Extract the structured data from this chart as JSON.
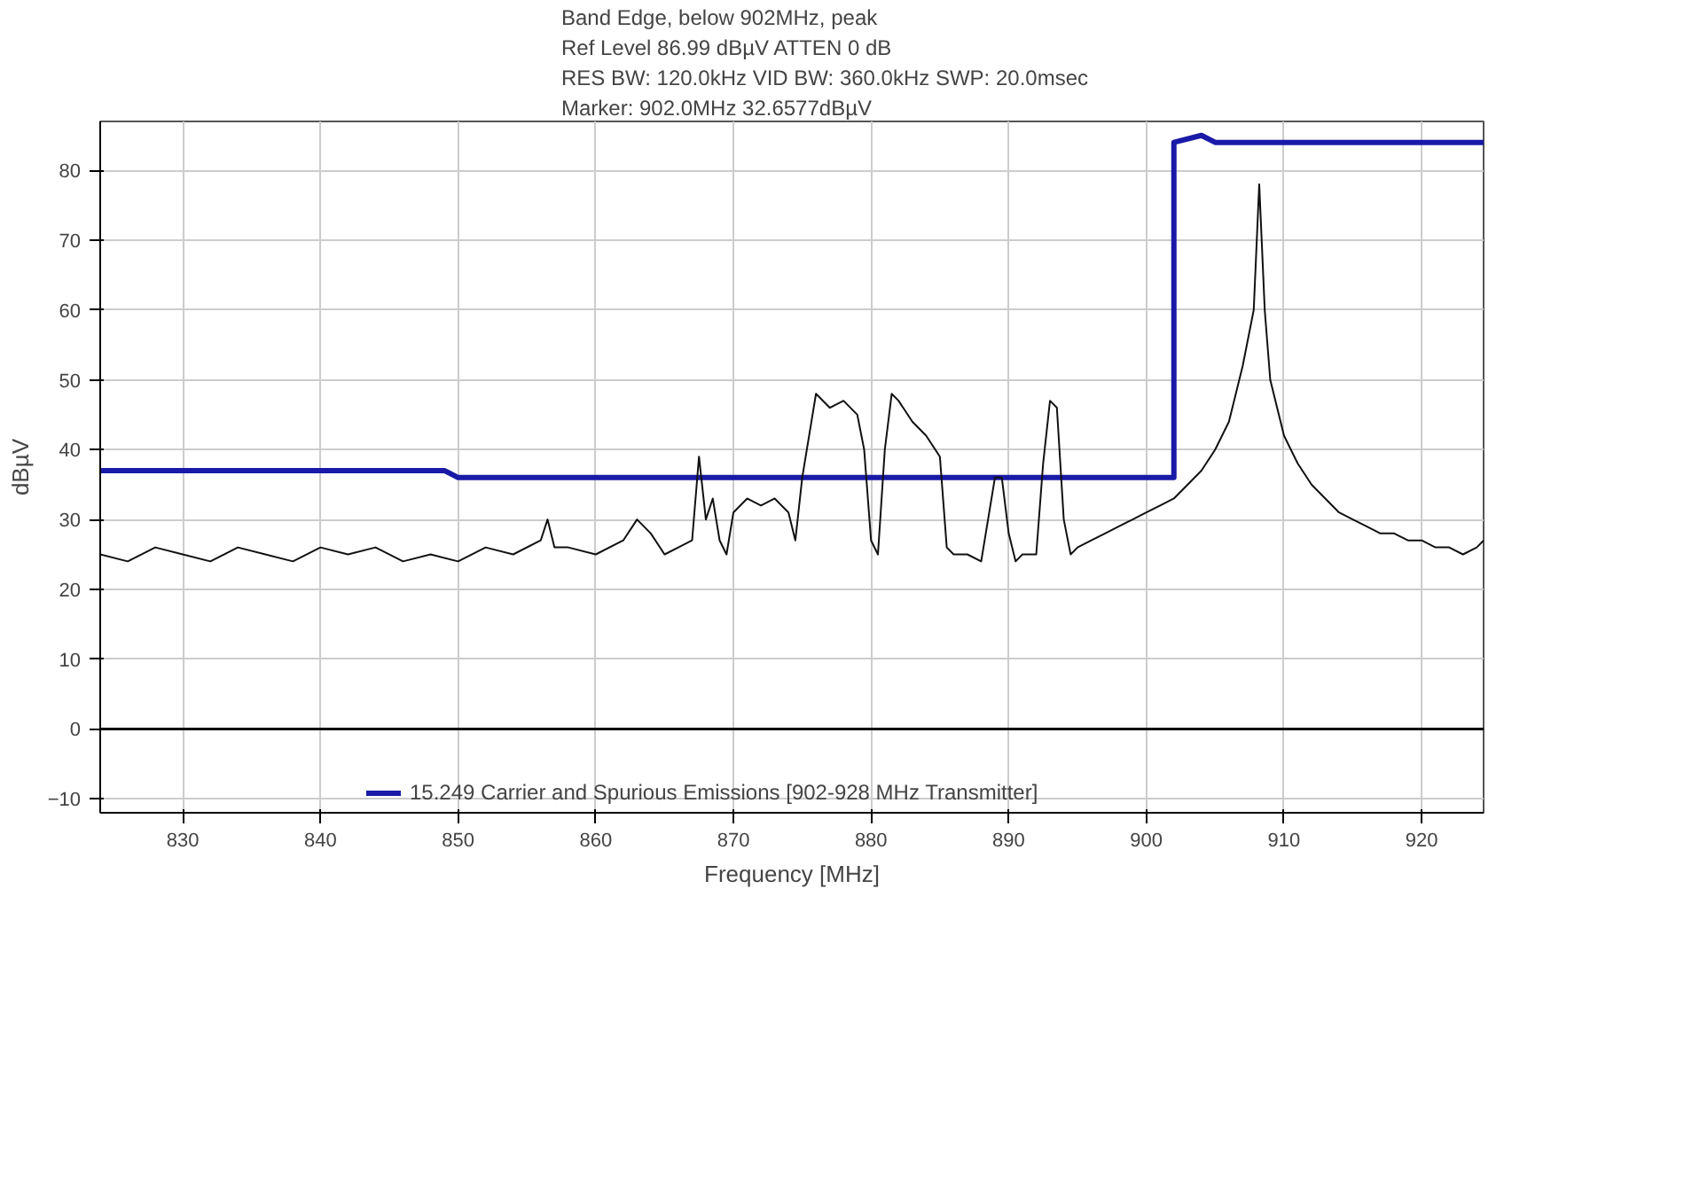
{
  "chart_data": {
    "type": "line",
    "xlabel": "Frequency [MHz]",
    "ylabel": "dBµV",
    "annotations": [
      "Band Edge, below 902MHz, peak",
      "Ref Level 86.99 dBµV    ATTEN 0 dB",
      "RES BW: 120.0kHz  VID BW: 360.0kHz  SWP: 20.0msec",
      "Marker: 902.0MHz  32.6577dBµV"
    ],
    "xlim": [
      824,
      924.5
    ],
    "ylim": [
      -12,
      87
    ],
    "xticks": [
      830,
      840,
      850,
      860,
      870,
      880,
      890,
      900,
      910,
      920
    ],
    "yticks": [
      -10,
      0,
      10,
      20,
      30,
      40,
      50,
      60,
      70,
      80
    ],
    "grid": true,
    "legend": "bottom",
    "marker": "none",
    "line_style": "solid",
    "ref_lines": [
      {
        "axis": "y",
        "value": 0,
        "color": "#000000"
      }
    ],
    "series": [
      {
        "name": "15.249 Carrier and Spurious Emissions [902-928 MHz Transmitter]",
        "color": "#1a1aa8",
        "x": [
          824,
          849,
          850,
          902,
          902,
          904,
          905,
          924.5
        ],
        "values": [
          37,
          37,
          36,
          36,
          84,
          85,
          84,
          84
        ]
      },
      {
        "color": "#111111",
        "x": [
          824,
          826,
          828,
          830,
          832,
          834,
          836,
          838,
          840,
          842,
          844,
          846,
          848,
          850,
          852,
          854,
          856,
          856.5,
          857,
          858,
          860,
          862,
          863,
          864,
          865,
          866,
          867,
          867.5,
          868,
          868.5,
          869,
          869.5,
          870,
          871,
          872,
          873,
          874,
          874.5,
          875,
          875.5,
          876,
          877,
          878,
          879,
          879.5,
          880,
          880.5,
          881,
          881.5,
          882,
          883,
          884,
          885,
          885.5,
          886,
          887,
          888,
          888.5,
          889,
          889.5,
          890,
          890.5,
          891,
          892,
          892.5,
          893,
          893.5,
          894,
          894.5,
          895,
          896,
          897,
          898,
          899,
          900,
          901,
          902,
          903,
          904,
          905,
          906,
          907,
          907.8,
          908.2,
          908.6,
          909,
          910,
          911,
          912,
          913,
          914,
          915,
          916,
          917,
          918,
          919,
          920,
          921,
          922,
          923,
          924,
          924.5
        ],
        "values": [
          25,
          24,
          26,
          25,
          24,
          26,
          25,
          24,
          26,
          25,
          26,
          24,
          25,
          24,
          26,
          25,
          27,
          30,
          26,
          26,
          25,
          27,
          30,
          28,
          25,
          26,
          27,
          39,
          30,
          33,
          27,
          25,
          31,
          33,
          32,
          33,
          31,
          27,
          36,
          42,
          48,
          46,
          47,
          45,
          40,
          27,
          25,
          40,
          48,
          47,
          44,
          42,
          39,
          26,
          25,
          25,
          24,
          30,
          36,
          36,
          28,
          24,
          25,
          25,
          38,
          47,
          46,
          30,
          25,
          26,
          27,
          28,
          29,
          30,
          31,
          32,
          33,
          35,
          37,
          40,
          44,
          52,
          60,
          78,
          60,
          50,
          42,
          38,
          35,
          33,
          31,
          30,
          29,
          28,
          28,
          27,
          27,
          26,
          26,
          25,
          26,
          27
        ]
      }
    ]
  }
}
